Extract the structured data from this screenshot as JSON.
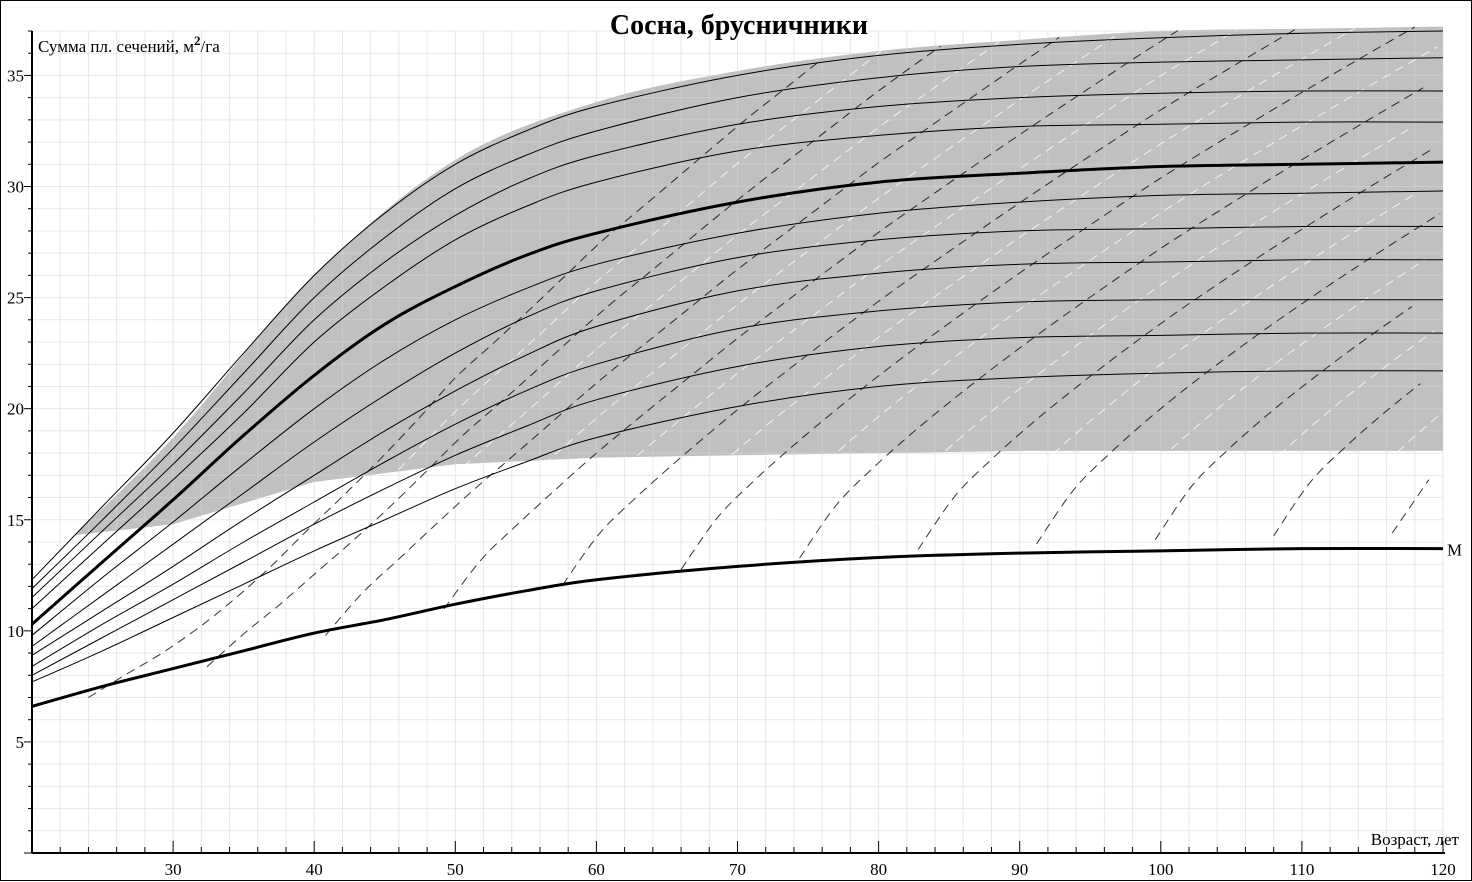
{
  "chart_data": {
    "type": "line",
    "title": "Сосна, брусничники",
    "ylabel_main": "Сумма пл. сечений, м",
    "ylabel_sup": "2",
    "ylabel_tail": "/га",
    "xlabel": "Возраст, лет",
    "xlim": [
      20,
      120
    ],
    "ylim": [
      0,
      37
    ],
    "x_ticks": [
      30,
      40,
      50,
      60,
      70,
      80,
      90,
      100,
      110,
      120
    ],
    "y_ticks": [
      5,
      10,
      15,
      20,
      25,
      30,
      35
    ],
    "grid": true,
    "colors": {
      "band": "#c0c0c0",
      "grid_band": "#ffffff",
      "grid": "#d6d6d6",
      "line": "#000000"
    },
    "band": {
      "x": [
        23,
        30,
        40,
        50,
        60,
        70,
        80,
        90,
        100,
        110,
        120
      ],
      "upper": [
        14.3,
        18.7,
        26.0,
        31.2,
        33.8,
        35.2,
        36.1,
        36.6,
        37.0,
        37.1,
        37.2
      ],
      "lower": [
        14.3,
        14.8,
        16.7,
        17.5,
        17.8,
        17.9,
        18.0,
        18.1,
        18.1,
        18.1,
        18.1
      ]
    },
    "series": [
      {
        "name": "M",
        "style": "thick",
        "x": [
          20,
          25,
          30,
          35,
          40,
          45,
          50,
          55,
          60,
          70,
          80,
          90,
          100,
          110,
          120
        ],
        "values": [
          6.6,
          7.5,
          8.3,
          9.1,
          9.9,
          10.5,
          11.2,
          11.8,
          12.3,
          12.9,
          13.3,
          13.5,
          13.6,
          13.7,
          13.7
        ]
      },
      {
        "style": "thick",
        "x": [
          20,
          25,
          30,
          35,
          40,
          45,
          50,
          55,
          60,
          70,
          80,
          90,
          100,
          110,
          120
        ],
        "values": [
          10.3,
          13.1,
          15.9,
          18.8,
          21.5,
          23.8,
          25.5,
          26.9,
          27.9,
          29.3,
          30.2,
          30.6,
          30.9,
          31.0,
          31.1
        ]
      },
      {
        "style": "thin",
        "x": [
          20,
          25,
          30,
          35,
          40,
          45,
          50,
          55,
          60,
          70,
          80,
          90,
          100,
          110,
          120
        ],
        "values": [
          12.3,
          15.6,
          18.9,
          22.5,
          26.0,
          28.8,
          31.0,
          32.5,
          33.6,
          35.0,
          35.9,
          36.4,
          36.7,
          36.9,
          37.0
        ]
      },
      {
        "style": "thin",
        "x": [
          20,
          25,
          30,
          35,
          40,
          45,
          50,
          55,
          60,
          70,
          80,
          90,
          100,
          110,
          120
        ],
        "values": [
          11.9,
          15.0,
          18.2,
          21.6,
          25.0,
          27.7,
          29.9,
          31.4,
          32.5,
          34.0,
          34.9,
          35.4,
          35.6,
          35.7,
          35.8
        ]
      },
      {
        "style": "thin",
        "x": [
          20,
          25,
          30,
          35,
          40,
          45,
          50,
          55,
          60,
          70,
          80,
          90,
          100,
          110,
          120
        ],
        "values": [
          11.5,
          14.5,
          17.5,
          20.7,
          24.0,
          26.6,
          28.7,
          30.3,
          31.4,
          32.8,
          33.6,
          34.0,
          34.2,
          34.3,
          34.3
        ]
      },
      {
        "style": "thin",
        "x": [
          20,
          25,
          30,
          35,
          40,
          45,
          50,
          55,
          60,
          70,
          80,
          90,
          100,
          110,
          120
        ],
        "values": [
          11.0,
          13.9,
          16.8,
          19.8,
          23.0,
          25.5,
          27.6,
          29.1,
          30.2,
          31.6,
          32.3,
          32.7,
          32.8,
          32.9,
          32.9
        ]
      },
      {
        "style": "thin",
        "x": [
          20,
          25,
          30,
          35,
          40,
          45,
          50,
          55,
          60,
          70,
          80,
          90,
          100,
          110,
          120
        ],
        "values": [
          9.8,
          12.4,
          14.9,
          17.5,
          20.0,
          22.2,
          24.0,
          25.4,
          26.5,
          27.9,
          28.8,
          29.3,
          29.6,
          29.7,
          29.8
        ]
      },
      {
        "style": "thin",
        "x": [
          20,
          25,
          30,
          35,
          40,
          45,
          50,
          55,
          60,
          70,
          80,
          90,
          100,
          110,
          120
        ],
        "values": [
          9.3,
          11.6,
          13.9,
          16.2,
          18.5,
          20.6,
          22.5,
          24.1,
          25.3,
          26.8,
          27.6,
          28.0,
          28.1,
          28.2,
          28.2
        ]
      },
      {
        "style": "thin",
        "x": [
          20,
          25,
          30,
          35,
          40,
          45,
          50,
          55,
          60,
          70,
          80,
          90,
          100,
          110,
          120
        ],
        "values": [
          8.9,
          10.9,
          12.9,
          15.0,
          17.0,
          19.0,
          20.8,
          22.4,
          23.7,
          25.3,
          26.1,
          26.5,
          26.6,
          26.7,
          26.7
        ]
      },
      {
        "style": "thin",
        "x": [
          20,
          25,
          30,
          35,
          40,
          45,
          50,
          55,
          60,
          70,
          80,
          90,
          100,
          110,
          120
        ],
        "values": [
          8.4,
          10.3,
          12.1,
          14.0,
          15.8,
          17.6,
          19.3,
          20.8,
          22.0,
          23.6,
          24.4,
          24.8,
          24.9,
          24.9,
          24.9
        ]
      },
      {
        "style": "thin",
        "x": [
          20,
          25,
          30,
          35,
          40,
          45,
          50,
          55,
          60,
          70,
          80,
          90,
          100,
          110,
          120
        ],
        "values": [
          8.0,
          9.7,
          11.4,
          13.1,
          14.8,
          16.4,
          17.9,
          19.2,
          20.4,
          21.9,
          22.8,
          23.2,
          23.3,
          23.4,
          23.4
        ]
      },
      {
        "style": "thin",
        "x": [
          20,
          25,
          30,
          35,
          40,
          45,
          50,
          55,
          60,
          70,
          80,
          90,
          100,
          110,
          120
        ],
        "values": [
          7.7,
          9.1,
          10.6,
          12.1,
          13.6,
          15.0,
          16.4,
          17.6,
          18.7,
          20.1,
          21.0,
          21.4,
          21.6,
          21.7,
          21.7
        ]
      }
    ]
  }
}
